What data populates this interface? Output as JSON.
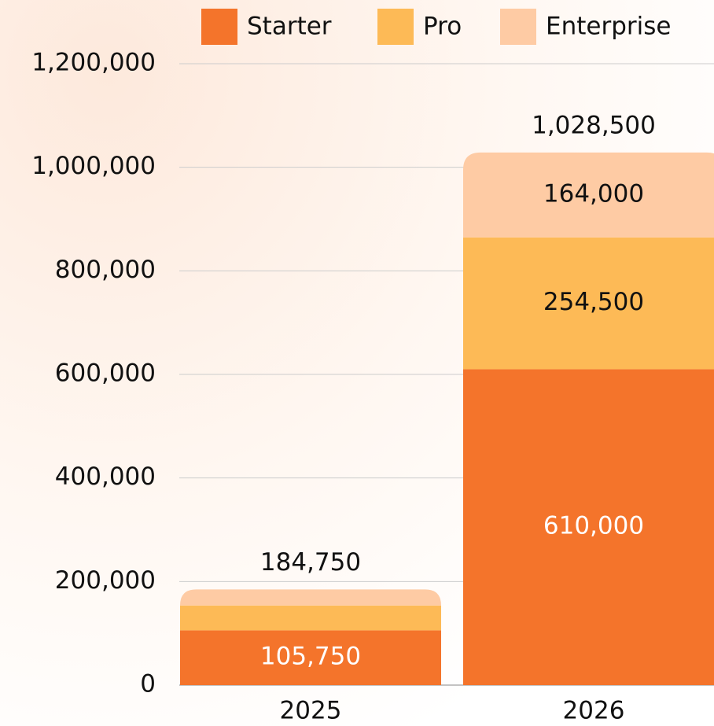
{
  "chart_data": {
    "type": "stacked_bar",
    "categories": [
      "2025",
      "2026"
    ],
    "series": [
      {
        "name": "Starter",
        "color": "#f4742b",
        "values": [
          105750,
          610000
        ],
        "value_labels": [
          "105,750",
          "610,000"
        ]
      },
      {
        "name": "Pro",
        "color": "#fdba56",
        "values": [
          48000,
          254500
        ],
        "value_labels": [
          null,
          "254,500"
        ]
      },
      {
        "name": "Enterprise",
        "color": "#fecba4",
        "values": [
          31000,
          164000
        ],
        "value_labels": [
          null,
          "164,000"
        ]
      }
    ],
    "totals": [
      184750,
      1028500
    ],
    "total_labels": [
      "184,750",
      "1,028,500"
    ],
    "ylim": [
      0,
      1200000
    ],
    "yticks": [
      0,
      {
        "value": 200000,
        "label": "200,000"
      },
      {
        "value": 400000,
        "label": "400,000"
      },
      {
        "value": 600000,
        "label": "600,000"
      },
      {
        "value": 800000,
        "label": "800,000"
      },
      {
        "value": 1000000,
        "label": "1,000,000"
      },
      {
        "value": 1200000,
        "label": "1,200,000"
      }
    ],
    "grid": true,
    "legend": "top"
  }
}
